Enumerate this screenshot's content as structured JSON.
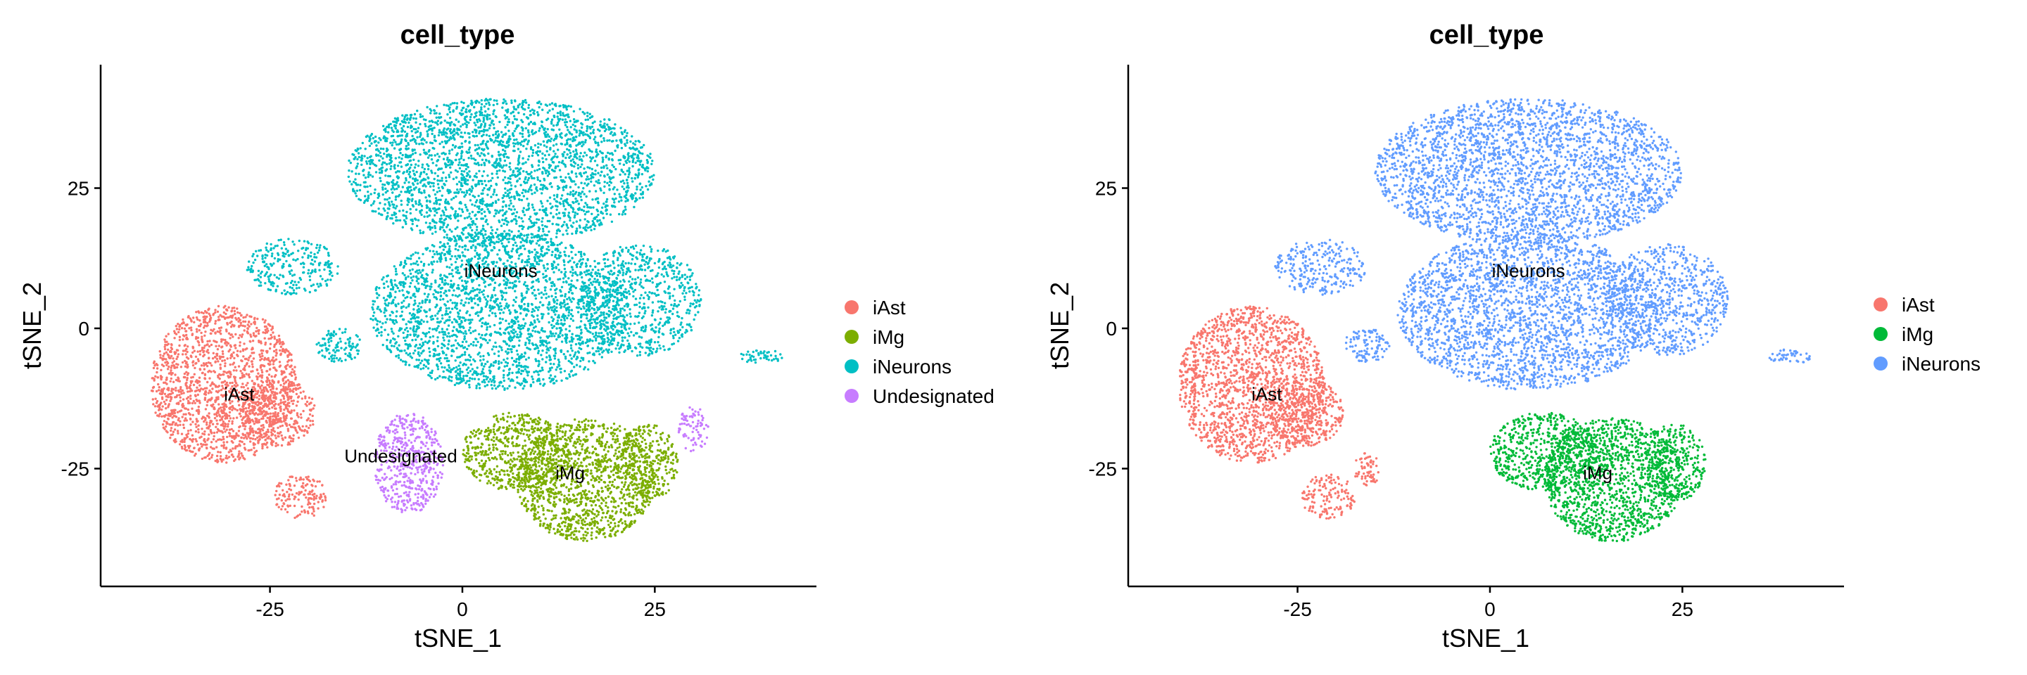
{
  "chart_data": [
    {
      "type": "scatter",
      "title": "cell_type",
      "xlabel": "tSNE_1",
      "ylabel": "tSNE_2",
      "xlim": [
        -47,
        46
      ],
      "ylim": [
        -46,
        47
      ],
      "xticks": [
        -25,
        0,
        25
      ],
      "yticks": [
        -25,
        0,
        25
      ],
      "grid": false,
      "legend_position": "right",
      "series": [
        {
          "name": "iAst",
          "color": "#F8766D",
          "label_at": [
            -29,
            -12
          ],
          "blobs": [
            {
              "cx": -31,
              "cy": -10,
              "rx": 9.5,
              "ry": 14,
              "n": 1700
            },
            {
              "cx": -24,
              "cy": -15,
              "rx": 5,
              "ry": 6,
              "n": 350
            },
            {
              "cx": -21,
              "cy": -30,
              "rx": 3.5,
              "ry": 4,
              "n": 140
            }
          ]
        },
        {
          "name": "iMg",
          "color": "#7CAE00",
          "label_at": [
            14,
            -26
          ],
          "blobs": [
            {
              "cx": 7,
              "cy": -22,
              "rx": 7,
              "ry": 7,
              "n": 600
            },
            {
              "cx": 16,
              "cy": -27,
              "rx": 9,
              "ry": 11,
              "n": 1300
            },
            {
              "cx": 24,
              "cy": -24,
              "rx": 4,
              "ry": 7,
              "n": 300
            }
          ]
        },
        {
          "name": "iNeurons",
          "color": "#00BFC4",
          "label_at": [
            5,
            10
          ],
          "blobs": [
            {
              "cx": 5,
              "cy": 28,
              "rx": 20,
              "ry": 13,
              "n": 2700
            },
            {
              "cx": 5,
              "cy": 3,
              "rx": 17,
              "ry": 14,
              "n": 2500
            },
            {
              "cx": 23,
              "cy": 5,
              "rx": 8,
              "ry": 10,
              "n": 700
            },
            {
              "cx": -22,
              "cy": 11,
              "rx": 6,
              "ry": 5,
              "n": 250
            },
            {
              "cx": -16,
              "cy": -3,
              "rx": 3,
              "ry": 3,
              "n": 100
            },
            {
              "cx": 39,
              "cy": -5,
              "rx": 3,
              "ry": 1.3,
              "n": 45
            }
          ]
        },
        {
          "name": "Undesignated",
          "color": "#C77CFF",
          "label_at": [
            -8,
            -23
          ],
          "blobs": [
            {
              "cx": -7,
              "cy": -24,
              "rx": 4.5,
              "ry": 9,
              "n": 500
            },
            {
              "cx": 30,
              "cy": -18,
              "rx": 2,
              "ry": 4,
              "n": 80
            }
          ]
        }
      ]
    },
    {
      "type": "scatter",
      "title": "cell_type",
      "xlabel": "tSNE_1",
      "ylabel": "tSNE_2",
      "xlim": [
        -47,
        46
      ],
      "ylim": [
        -46,
        47
      ],
      "xticks": [
        -25,
        0,
        25
      ],
      "yticks": [
        -25,
        0,
        25
      ],
      "grid": false,
      "legend_position": "right",
      "series": [
        {
          "name": "iAst",
          "color": "#F8766D",
          "label_at": [
            -29,
            -12
          ],
          "blobs": [
            {
              "cx": -31,
              "cy": -10,
              "rx": 9.5,
              "ry": 14,
              "n": 1700
            },
            {
              "cx": -24,
              "cy": -15,
              "rx": 5,
              "ry": 6,
              "n": 350
            },
            {
              "cx": -21,
              "cy": -30,
              "rx": 3.5,
              "ry": 4,
              "n": 140
            },
            {
              "cx": -16,
              "cy": -25,
              "rx": 2,
              "ry": 3,
              "n": 60
            }
          ]
        },
        {
          "name": "iMg",
          "color": "#00BA38",
          "label_at": [
            14,
            -26
          ],
          "blobs": [
            {
              "cx": 7,
              "cy": -22,
              "rx": 7,
              "ry": 7,
              "n": 600
            },
            {
              "cx": 16,
              "cy": -27,
              "rx": 9,
              "ry": 11,
              "n": 1300
            },
            {
              "cx": 24,
              "cy": -24,
              "rx": 4,
              "ry": 7,
              "n": 300
            }
          ]
        },
        {
          "name": "iNeurons",
          "color": "#619CFF",
          "label_at": [
            5,
            10
          ],
          "blobs": [
            {
              "cx": 5,
              "cy": 28,
              "rx": 20,
              "ry": 13,
              "n": 2700
            },
            {
              "cx": 5,
              "cy": 3,
              "rx": 17,
              "ry": 14,
              "n": 2500
            },
            {
              "cx": 23,
              "cy": 5,
              "rx": 8,
              "ry": 10,
              "n": 700
            },
            {
              "cx": -22,
              "cy": 11,
              "rx": 6,
              "ry": 5,
              "n": 250
            },
            {
              "cx": -16,
              "cy": -3,
              "rx": 3,
              "ry": 3,
              "n": 100
            },
            {
              "cx": 39,
              "cy": -5,
              "rx": 3,
              "ry": 1.3,
              "n": 45
            }
          ]
        }
      ]
    }
  ]
}
